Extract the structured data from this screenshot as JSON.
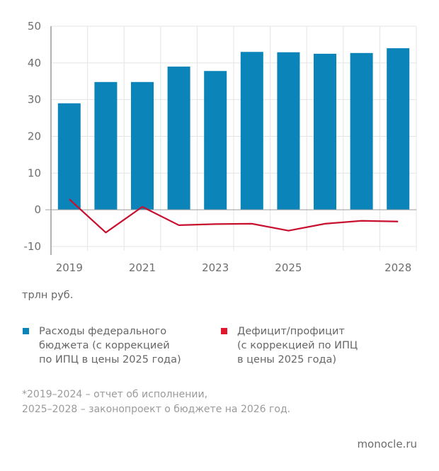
{
  "chart_data": {
    "type": "bar",
    "title": "",
    "xlabel": "",
    "ylabel": "трлн руб.",
    "ylim": [
      -10,
      50
    ],
    "yticks": [
      50,
      40,
      30,
      20,
      10,
      0,
      -10
    ],
    "grid": true,
    "categories": [
      "2019",
      "2020",
      "2021",
      "2022",
      "2023",
      "2024",
      "2025",
      "2026",
      "2027",
      "2028"
    ],
    "xtick_labels": [
      "2019",
      "",
      "2021",
      "",
      "2023",
      "",
      "2025",
      "",
      "",
      "2028"
    ],
    "series": [
      {
        "name": "Расходы федерального бюджета (с коррекцией по ИПЦ в цены 2025 года)",
        "type": "bar",
        "color": "#0a84b9",
        "values": [
          29.0,
          34.8,
          34.8,
          39.0,
          37.8,
          43.0,
          42.9,
          42.5,
          42.7,
          44.0
        ]
      },
      {
        "name": "Дефицит/профицит (с коррекцией по ИПЦ в цены 2025 года)",
        "type": "line",
        "color": "#c8102e",
        "values": [
          2.9,
          -6.2,
          0.8,
          -4.2,
          -3.9,
          -3.8,
          -5.7,
          -3.8,
          -3.0,
          -3.2
        ]
      }
    ],
    "legend_position": "bottom"
  },
  "unit_label": "трлн руб.",
  "legend": {
    "expenses": {
      "color": "#0a84b9",
      "line1": "Расходы федерального",
      "line2": "бюджета (с коррекцией",
      "line3": "по ИПЦ в цены 2025 года)"
    },
    "deficit": {
      "color": "#e0182d",
      "line1": "Дефицит/профицит",
      "line2": "(с коррекцией по ИПЦ",
      "line3": "в цены 2025 года)"
    }
  },
  "footnote": {
    "line1": "*2019–2024 – отчет об исполнении,",
    "line2": "2025–2028 – законопроект о бюджете на 2026 год."
  },
  "source": "monocle.ru"
}
